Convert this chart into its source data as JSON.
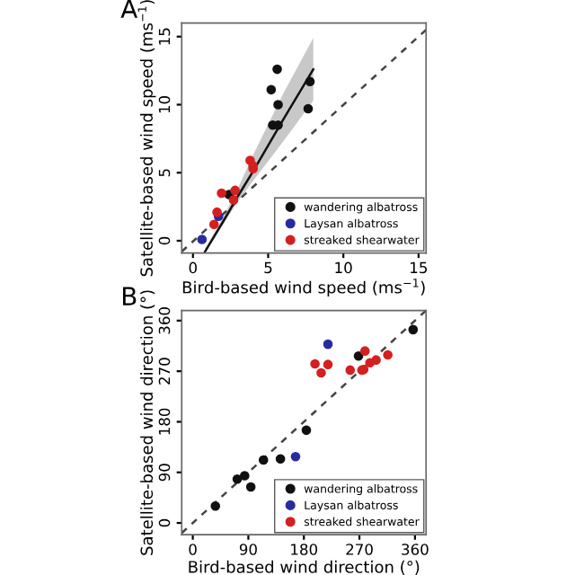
{
  "chart_data": [
    {
      "type": "scatter",
      "annotations": [
        "A"
      ],
      "xlabel": "Bird-based wind speed (ms$^{−1}$)",
      "ylabel": "Satellite-based wind speed (ms$^{−1}$)",
      "xlim": [
        -0.75,
        15.5
      ],
      "ylim": [
        -0.9,
        16
      ],
      "xticks": [
        0,
        5,
        10,
        15
      ],
      "yticks": [
        0,
        5,
        10,
        15
      ],
      "grid": false,
      "legend": "bottom right",
      "marker": "circle",
      "series": [
        {
          "type": "line",
          "marker": "none",
          "color": "#444444",
          "line_style": "dashed",
          "x": [
            -0.75,
            15.5
          ],
          "values": [
            -0.8,
            15.5
          ]
        },
        {
          "type": "line",
          "marker": "none",
          "color": "#111111",
          "line_style": "solid",
          "x": [
            0.8,
            2,
            3,
            4,
            6,
            8
          ],
          "values": [
            -0.8,
            1.4,
            3.3,
            5.1,
            8.9,
            12.6
          ],
          "lower": [
            -0.9,
            1.2,
            2.9,
            4.4,
            7.3,
            10.3
          ],
          "upper": [
            -0.6,
            1.7,
            3.9,
            6.3,
            10.8,
            14.9
          ]
        },
        {
          "name": "wandering albatross",
          "color": "#111111",
          "x": [
            5.6,
            5.2,
            5.66,
            7.78,
            7.66,
            5.3,
            5.66,
            2.4
          ],
          "values": [
            12.6,
            11.1,
            10.0,
            11.7,
            9.7,
            8.5,
            8.5,
            3.4
          ]
        },
        {
          "name": "Laysan albatross",
          "color": "#2a2aa0",
          "x": [
            0.6,
            1.7
          ],
          "values": [
            0.1,
            1.8
          ]
        },
        {
          "name": "streaked shearwater",
          "color": "#d42020",
          "x": [
            1.4,
            1.6,
            1.9,
            2.8,
            2.7,
            3.8,
            4.0,
            4.0
          ],
          "values": [
            1.2,
            2.1,
            3.5,
            3.7,
            3.0,
            5.9,
            5.3,
            5.5
          ]
        }
      ]
    },
    {
      "type": "scatter",
      "annotations": [
        "B"
      ],
      "xlabel": "Bird-based wind direction (°)",
      "ylabel": "Satellite-based wind direction (°)",
      "xlim": [
        -18,
        378
      ],
      "ylim": [
        -21,
        378
      ],
      "xticks": [
        0,
        90,
        180,
        270,
        360
      ],
      "yticks": [
        0,
        90,
        180,
        270,
        360
      ],
      "grid": false,
      "legend": "bottom right",
      "marker": "circle",
      "series": [
        {
          "type": "line",
          "marker": "none",
          "color": "#444444",
          "line_style": "dashed",
          "x": [
            -18,
            378
          ],
          "values": [
            -18,
            378
          ]
        },
        {
          "name": "wandering albatross",
          "color": "#111111",
          "x": [
            36.6,
            72,
            84,
            94,
            114.5,
            142,
            184,
            268.5,
            357
          ],
          "values": [
            30,
            78,
            84,
            64,
            112,
            114,
            165,
            297,
            344
          ]
        },
        {
          "name": "Laysan albatross",
          "color": "#2a2aa0",
          "x": [
            166.5,
            219
          ],
          "values": [
            118,
            318
          ]
        },
        {
          "name": "streaked shearwater",
          "color": "#d42020",
          "x": [
            198,
            208,
            219,
            255,
            274,
            279,
            287,
            297,
            316,
            277
          ],
          "values": [
            283,
            267,
            282,
            272,
            272,
            306,
            285,
            290,
            299,
            273
          ]
        }
      ]
    }
  ]
}
